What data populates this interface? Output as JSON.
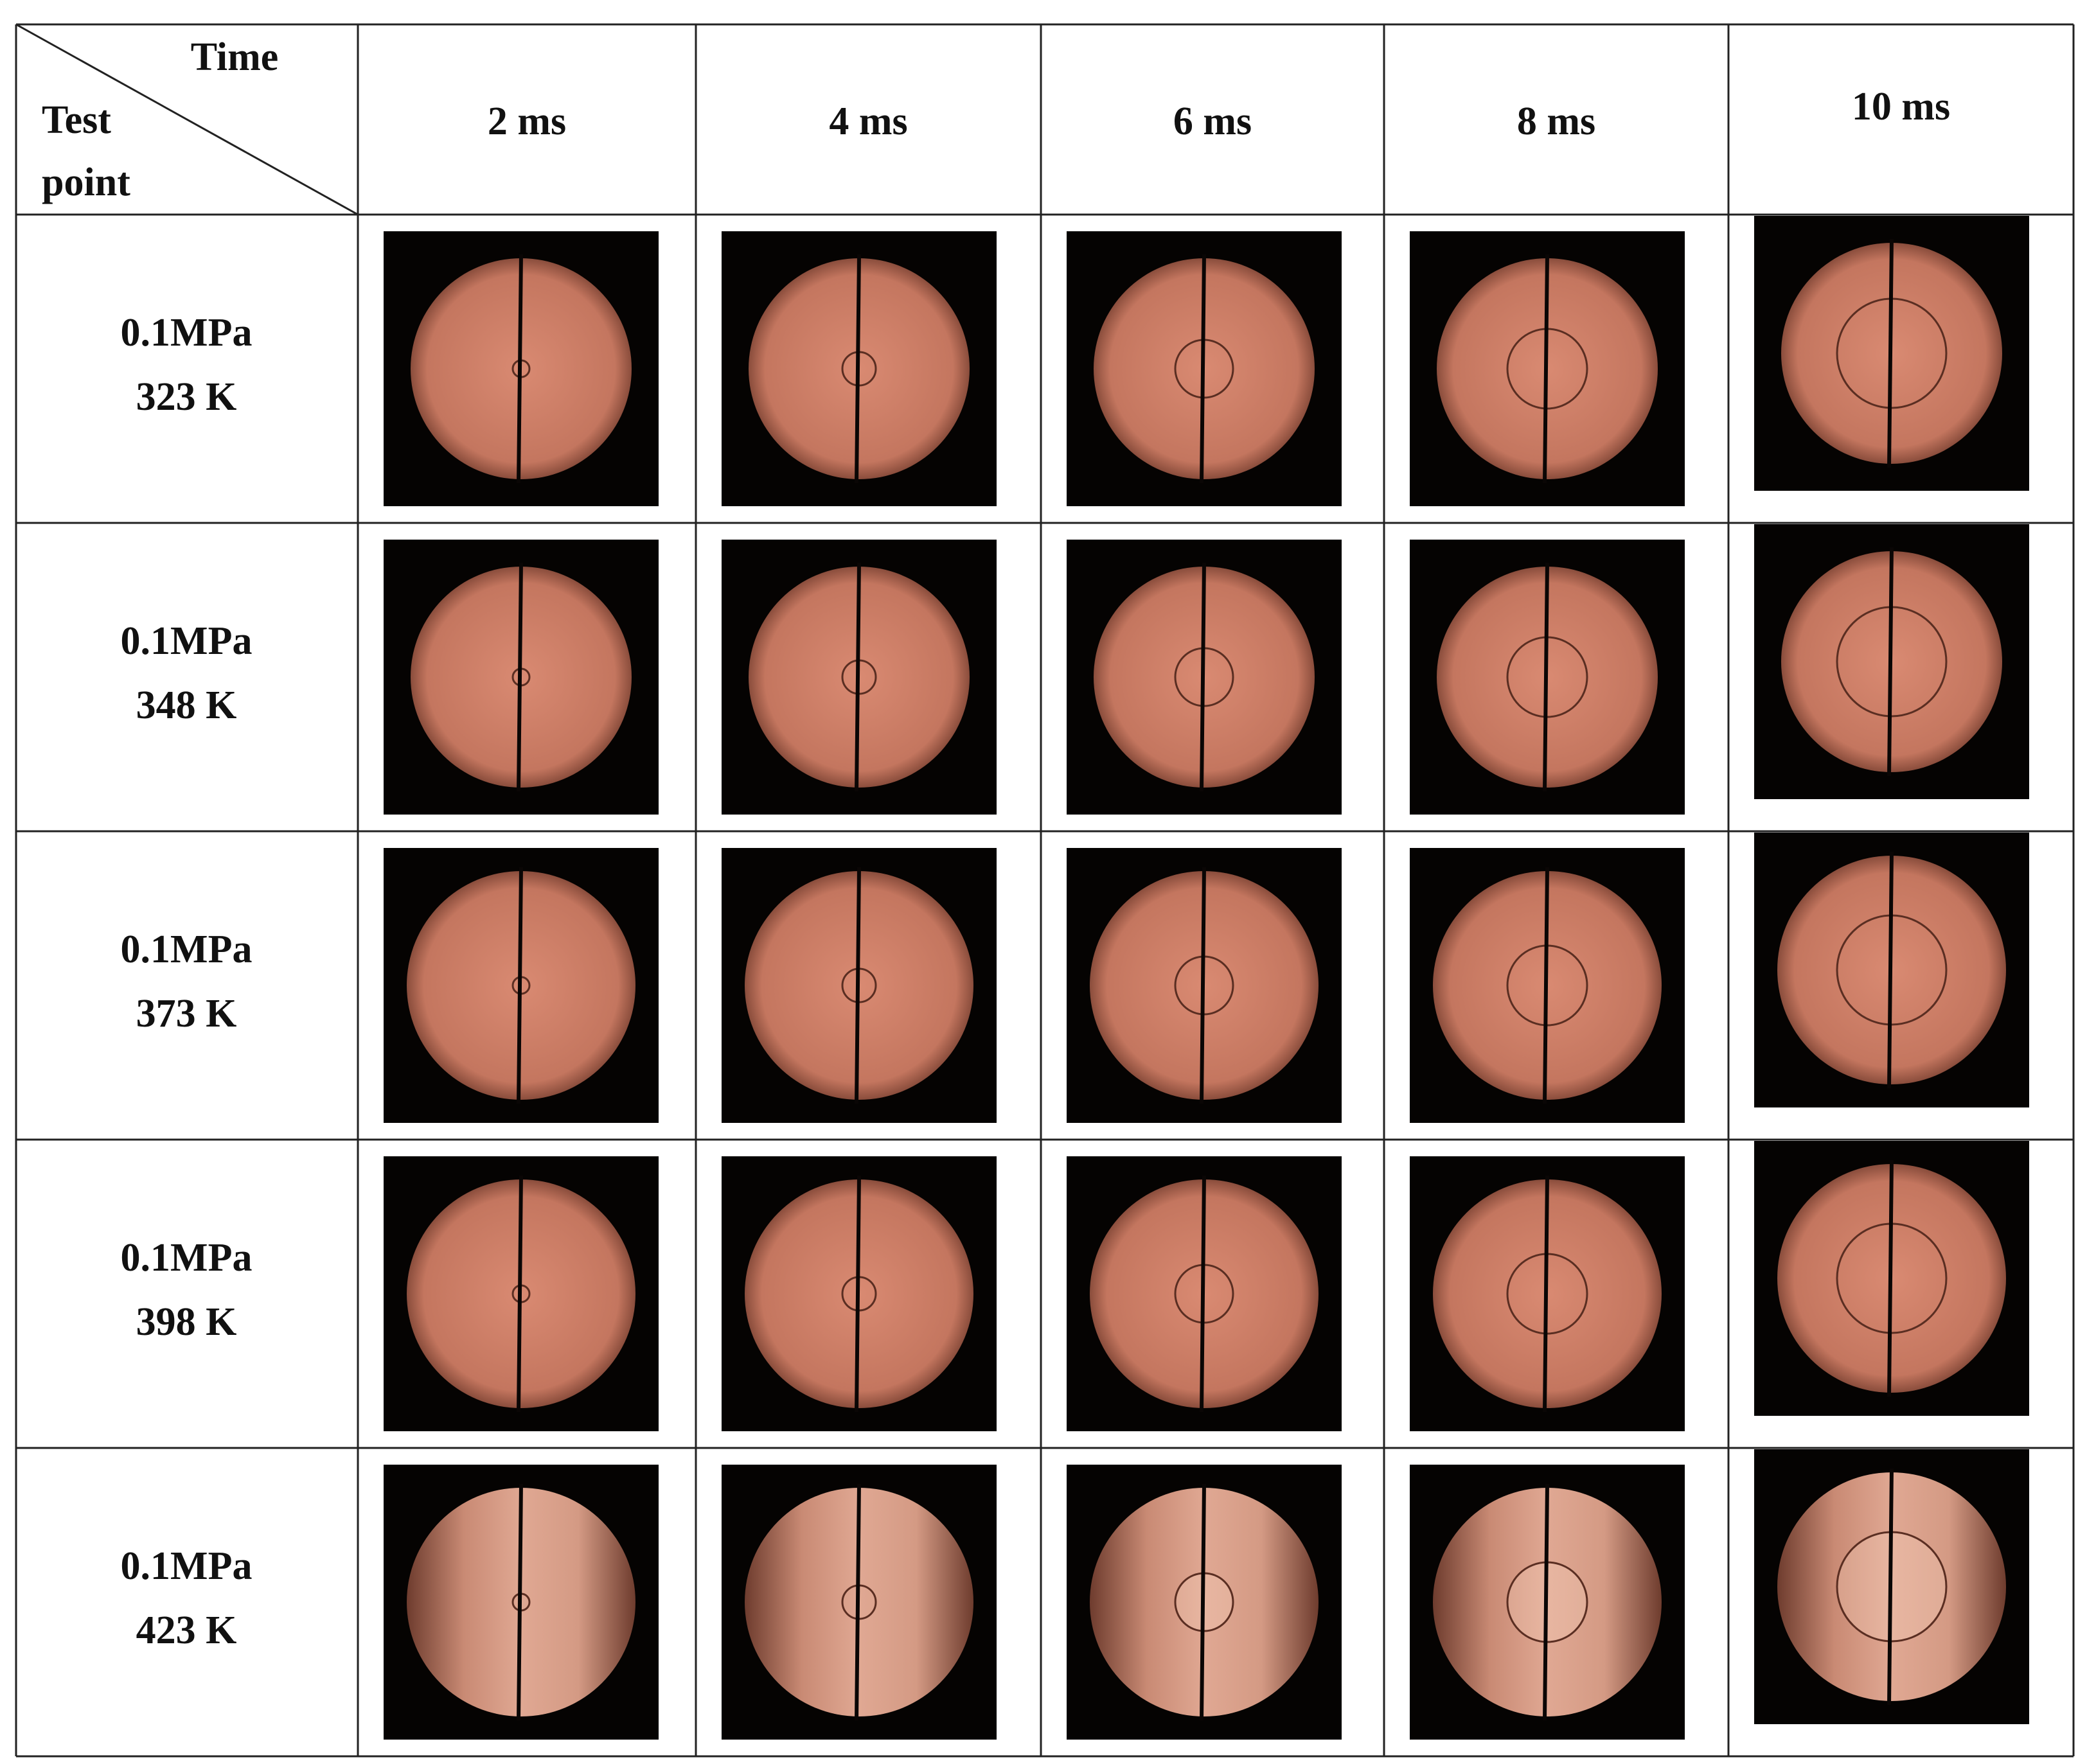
{
  "table": {
    "corner": {
      "top": "Time",
      "bottom_line1": "Test",
      "bottom_line2": "point"
    },
    "columns": [
      "2 ms",
      "4 ms",
      "6 ms",
      "8 ms",
      "10 ms"
    ],
    "rows": [
      {
        "pressure": "0.1MPa",
        "temperature": "323 K"
      },
      {
        "pressure": "0.1MPa",
        "temperature": "348 K"
      },
      {
        "pressure": "0.1MPa",
        "temperature": "373 K"
      },
      {
        "pressure": "0.1MPa",
        "temperature": "398 K"
      },
      {
        "pressure": "0.1MPa",
        "temperature": "423 K"
      }
    ]
  }
}
